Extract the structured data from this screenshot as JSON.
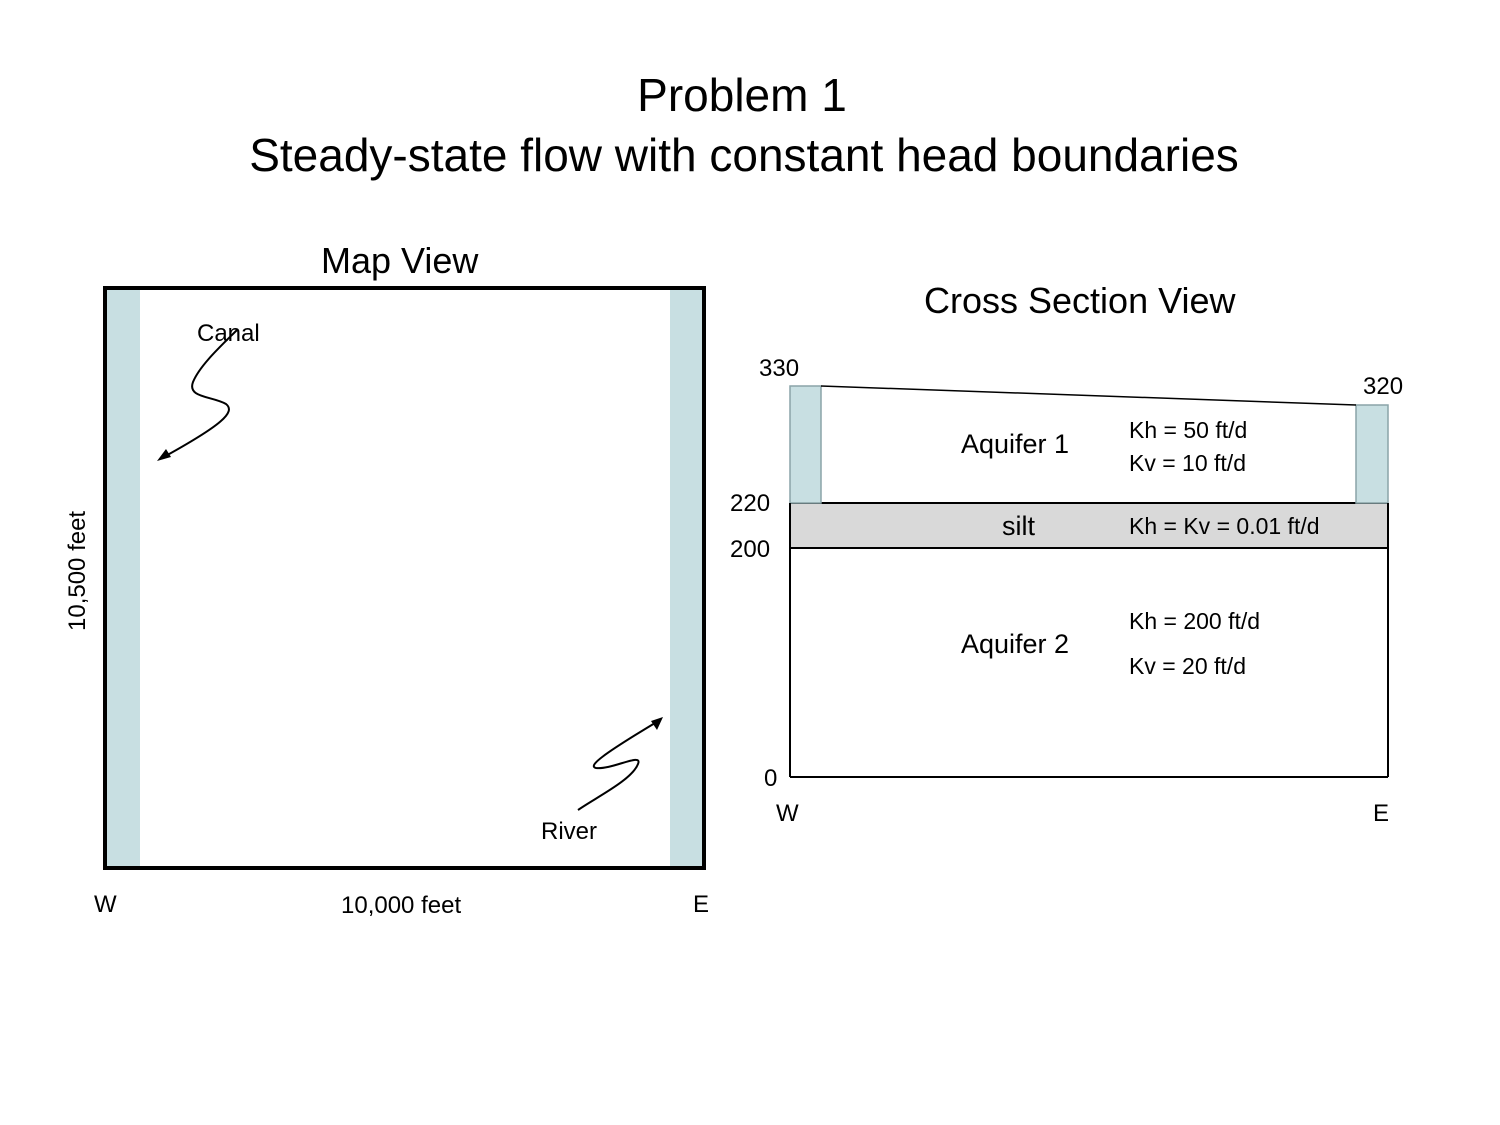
{
  "header": {
    "title_line1": "Problem 1",
    "title_line2": "Steady-state flow with constant head boundaries"
  },
  "map_view": {
    "title": "Map View",
    "canal_label": "Canal",
    "river_label": "River",
    "height_label": "10,500 feet",
    "width_label": "10,000 feet",
    "west_label": "W",
    "east_label": "E"
  },
  "cross_section": {
    "title": "Cross Section View",
    "elev_330": "330",
    "elev_320": "320",
    "elev_220": "220",
    "elev_200": "200",
    "elev_0": "0",
    "west_label": "W",
    "east_label": "E",
    "aquifer1": {
      "name": "Aquifer 1",
      "kh": "Kh = 50 ft/d",
      "kv": "Kv = 10 ft/d"
    },
    "silt": {
      "name": "silt",
      "k": "Kh = Kv = 0.01 ft/d"
    },
    "aquifer2": {
      "name": "Aquifer 2",
      "kh": "Kh = 200 ft/d",
      "kv": "Kv = 20 ft/d"
    }
  },
  "colors": {
    "boundary_fill": "#c8dfe2",
    "silt_fill": "#d9d9d9",
    "boundary_stroke": "#8aa4a8"
  }
}
